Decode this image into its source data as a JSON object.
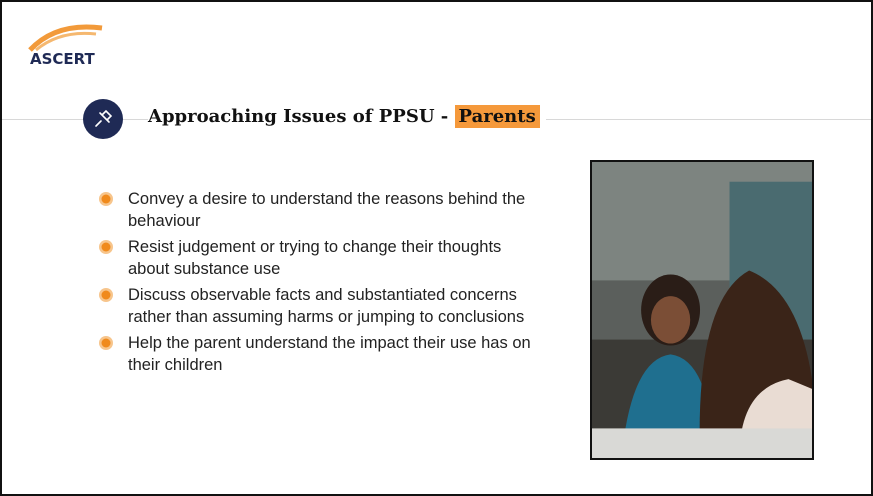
{
  "header": {
    "logo": "ASCERT"
  },
  "title": {
    "text": "Approaching Issues of PPSU - ",
    "highlight": "Parents"
  },
  "bullets": [
    "Convey a desire to understand the reasons behind the behaviour",
    "Resist judgement or trying to change their thoughts about substance use",
    "Discuss observable facts and substantiated concerns rather than assuming harms or jumping to conclusions",
    "Help the parent understand the impact their use has on their children"
  ]
}
